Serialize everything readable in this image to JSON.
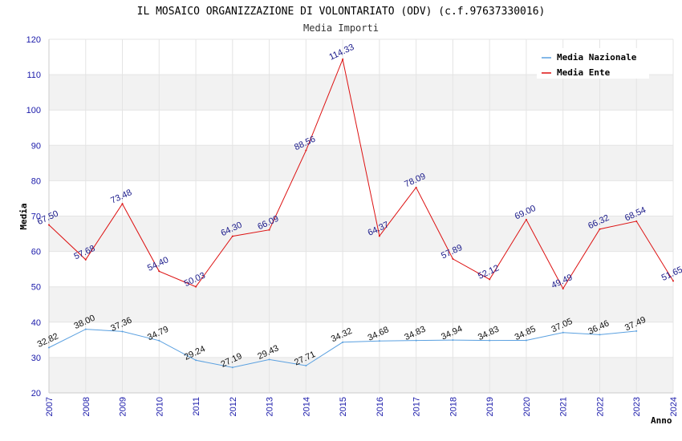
{
  "chart_data": {
    "type": "line",
    "title": "IL MOSAICO ORGANIZZAZIONE DI VOLONTARIATO (ODV) (c.f.97637330016)",
    "subtitle": "Media Importi",
    "xlabel": "Anno",
    "ylabel": "Media",
    "ylim": [
      20,
      120
    ],
    "yticks": [
      20,
      30,
      40,
      50,
      60,
      70,
      80,
      90,
      100,
      110,
      120
    ],
    "x": [
      "2007",
      "2008",
      "2009",
      "2010",
      "2011",
      "2012",
      "2013",
      "2014",
      "2015",
      "2016",
      "2017",
      "2018",
      "2019",
      "2020",
      "2021",
      "2022",
      "2023",
      "2024"
    ],
    "grid": true,
    "legend_position": "top-right",
    "series": [
      {
        "name": "Media Nazionale",
        "color": "#5aa0e0",
        "values": [
          32.82,
          38.0,
          37.36,
          34.79,
          29.24,
          27.19,
          29.43,
          27.71,
          34.32,
          34.68,
          34.83,
          34.94,
          34.83,
          34.85,
          37.05,
          36.46,
          37.49,
          null
        ],
        "labels": [
          "32.82",
          "38.00",
          "37.36",
          "34.79",
          "29.24",
          "27.19",
          "29.43",
          "27.71",
          "34.32",
          "34.68",
          "34.83",
          "34.94",
          "34.83",
          "34.85",
          "37.05",
          "36.46",
          "37.49",
          ""
        ]
      },
      {
        "name": "Media Ente",
        "color": "#dd1111",
        "values": [
          67.5,
          57.68,
          73.48,
          54.4,
          50.03,
          64.3,
          66.09,
          88.56,
          114.33,
          64.37,
          78.09,
          57.89,
          52.12,
          69.0,
          49.49,
          66.32,
          68.54,
          51.65
        ],
        "labels": [
          "67.50",
          "57.68",
          "73.48",
          "54.40",
          "50.03",
          "64.30",
          "66.09",
          "88.56",
          "114.33",
          "64.37",
          "78.09",
          "57.89",
          "52.12",
          "69.00",
          "49.49",
          "66.32",
          "68.54",
          "51.65"
        ]
      }
    ]
  }
}
